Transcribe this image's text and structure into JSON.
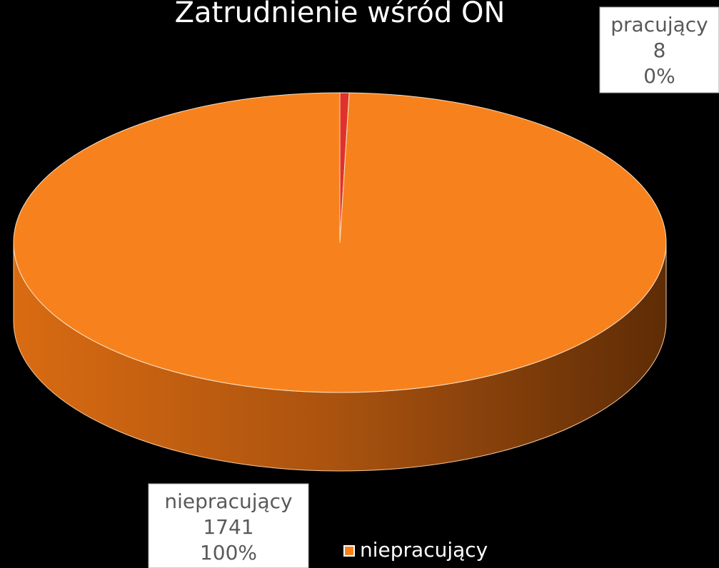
{
  "chart_data": {
    "type": "pie",
    "title": "Zatrudnienie wśród ON",
    "series": [
      {
        "name": "pracujący",
        "color": "#e0322a",
        "values": [
          8
        ],
        "percent_labels": [
          "0%"
        ]
      },
      {
        "name": "niepracujący",
        "color": "#f7821d",
        "values": [
          1741
        ],
        "percent_labels": [
          "100%"
        ]
      }
    ]
  }
}
